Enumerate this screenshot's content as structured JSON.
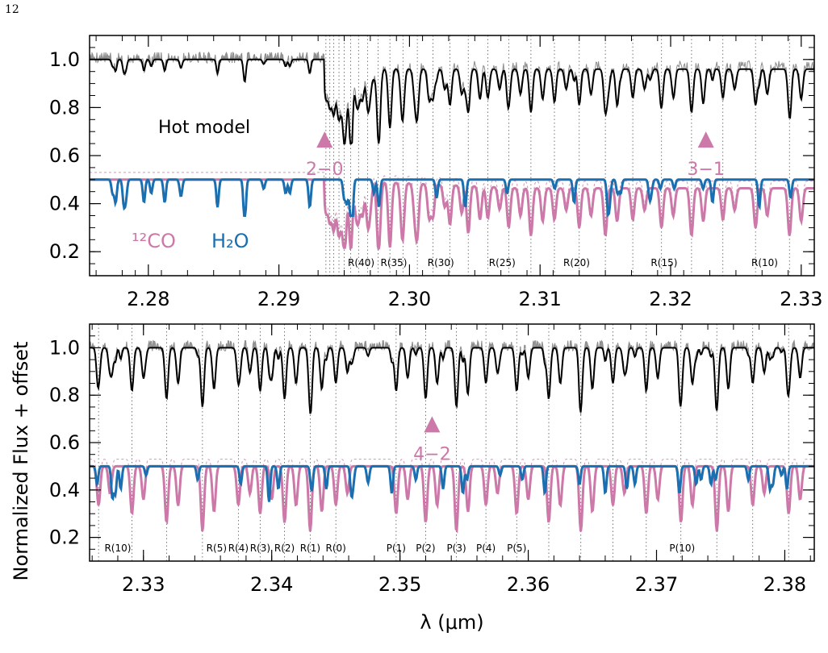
{
  "page_number": "12",
  "colors": {
    "observed": "#8c8c8c",
    "hot_model": "#000000",
    "co": "#cc78a8",
    "h2o": "#1a6fb0",
    "gridline": "#555555"
  },
  "chart_data": {
    "type": "line",
    "ylabel": "Normalized Flux + offset",
    "xlabel": "λ (μm)",
    "ylim": [
      0.1,
      1.1
    ],
    "series_names": [
      "Hot model"
    ],
    "legend": [
      "¹²CO",
      "H₂O"
    ],
    "panels": [
      {
        "id": "top",
        "xlim": [
          2.2755,
          2.331
        ],
        "xticks": [
          2.28,
          2.29,
          2.3,
          2.31,
          2.32,
          2.33
        ],
        "xtick_labels": [
          "2.28",
          "2.29",
          "2.30",
          "2.31",
          "2.32",
          "2.33"
        ],
        "yticks": [
          0.2,
          0.4,
          0.6,
          0.8,
          1.0
        ],
        "ytick_labels": [
          "0.2",
          "0.4",
          "0.6",
          "0.8",
          "1.0"
        ],
        "model_label": "Hot model",
        "band_markers": [
          {
            "label": "2−0",
            "x": 2.2935,
            "y": 0.66
          },
          {
            "label": "3−1",
            "x": 2.3227,
            "y": 0.66
          }
        ],
        "line_labels": [
          {
            "label": "R(40)",
            "x": 2.2963
          },
          {
            "label": "R(35)",
            "x": 2.2988
          },
          {
            "label": "R(30)",
            "x": 2.3024
          },
          {
            "label": "R(25)",
            "x": 2.3071
          },
          {
            "label": "R(20)",
            "x": 2.3128
          },
          {
            "label": "R(15)",
            "x": 2.3195
          },
          {
            "label": "R(10)",
            "x": 2.3272
          }
        ],
        "grid_lines_x": [
          2.2936,
          2.2939,
          2.2942,
          2.2946,
          2.295,
          2.2955,
          2.2961,
          2.2968,
          2.2976,
          2.2985,
          2.2995,
          2.3006,
          2.3018,
          2.3031,
          2.3045,
          2.306,
          2.3076,
          2.3093,
          2.3111,
          2.313,
          2.315,
          2.3171,
          2.3193,
          2.3216,
          2.324,
          2.3265,
          2.3291
        ]
      },
      {
        "id": "bottom",
        "xlim": [
          2.3258,
          2.3823
        ],
        "xticks": [
          2.33,
          2.34,
          2.35,
          2.36,
          2.37,
          2.38
        ],
        "xtick_labels": [
          "2.33",
          "2.34",
          "2.35",
          "2.36",
          "2.37",
          "2.38"
        ],
        "yticks": [
          0.2,
          0.4,
          0.6,
          0.8,
          1.0
        ],
        "ytick_labels": [
          "0.2",
          "0.4",
          "0.6",
          "0.8",
          "1.0"
        ],
        "band_markers": [
          {
            "label": "4−2",
            "x": 2.3525,
            "y": 0.67
          }
        ],
        "line_labels": [
          {
            "label": "R(10)",
            "x": 2.328
          },
          {
            "label": "R(5)",
            "x": 2.3357
          },
          {
            "label": "R(4)",
            "x": 2.3374
          },
          {
            "label": "R(3)",
            "x": 2.3391
          },
          {
            "label": "R(2)",
            "x": 2.341
          },
          {
            "label": "R(1)",
            "x": 2.343
          },
          {
            "label": "R(0)",
            "x": 2.345
          },
          {
            "label": "P(1)",
            "x": 2.3497
          },
          {
            "label": "P(2)",
            "x": 2.352
          },
          {
            "label": "P(3)",
            "x": 2.3544
          },
          {
            "label": "P(4)",
            "x": 2.3567
          },
          {
            "label": "P(5)",
            "x": 2.3591
          },
          {
            "label": "P(10)",
            "x": 2.372
          }
        ],
        "grid_lines_x": [
          2.3265,
          2.3291,
          2.3318,
          2.3346,
          2.3374,
          2.3391,
          2.341,
          2.343,
          2.345,
          2.3497,
          2.352,
          2.3544,
          2.3567,
          2.3591,
          2.3616,
          2.3641,
          2.3666,
          2.3692,
          2.3719,
          2.3747,
          2.3775,
          2.3803
        ]
      }
    ]
  }
}
